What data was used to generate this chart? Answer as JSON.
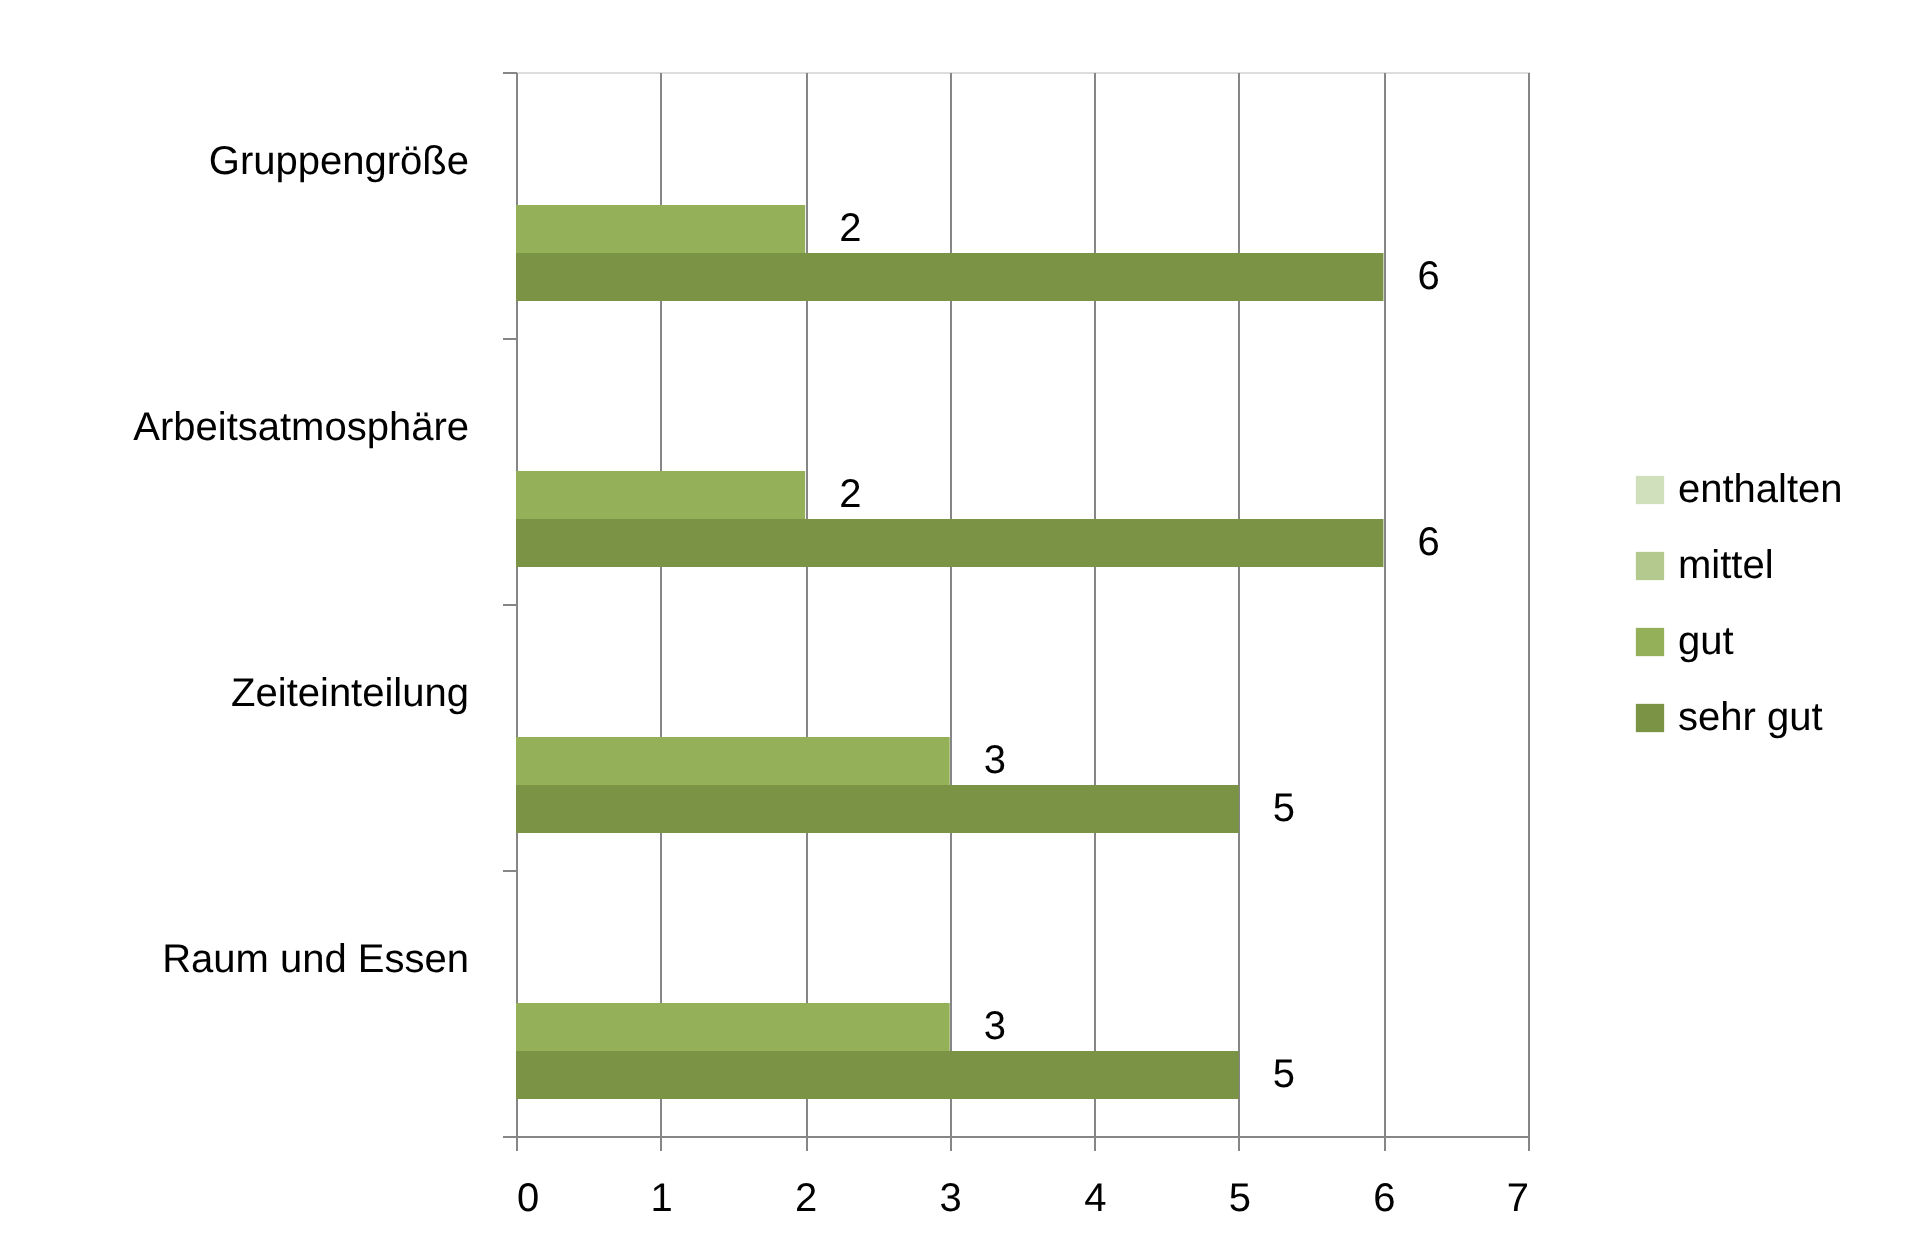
{
  "chart_data": {
    "type": "bar",
    "orientation": "horizontal",
    "categories": [
      "Gruppengröße",
      "Arbeitsatmosphäre",
      "Zeiteinteilung",
      "Raum und Essen"
    ],
    "series": [
      {
        "name": "enthalten",
        "color": "#d0dfbc",
        "values": [
          null,
          null,
          null,
          null
        ]
      },
      {
        "name": "mittel",
        "color": "#b3c98d",
        "values": [
          null,
          null,
          null,
          null
        ]
      },
      {
        "name": "gut",
        "color": "#94b058",
        "values": [
          2,
          2,
          3,
          3
        ]
      },
      {
        "name": "sehr gut",
        "color": "#7a9344",
        "values": [
          6,
          6,
          5,
          5
        ]
      }
    ],
    "xlim": [
      0,
      7
    ],
    "xticks": [
      0,
      1,
      2,
      3,
      4,
      5,
      6,
      7
    ],
    "grid": "x",
    "legend": "right",
    "data_labels": true
  }
}
